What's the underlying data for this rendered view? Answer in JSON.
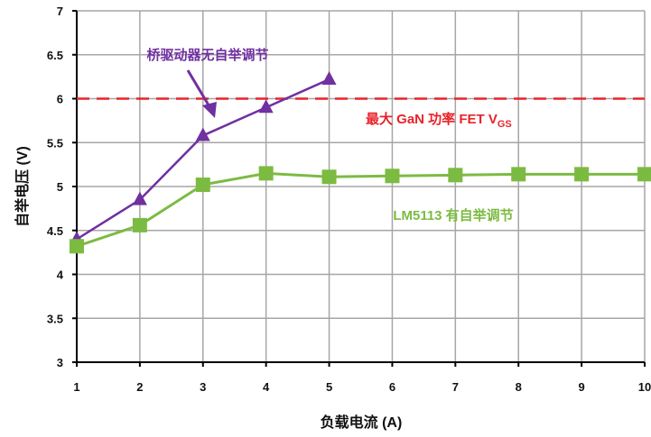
{
  "chart_data": {
    "type": "line",
    "xlabel": "负载电流 (A)",
    "ylabel": "自举电压 (V)",
    "xlim": [
      1,
      10
    ],
    "ylim": [
      3,
      7
    ],
    "xticks": [
      "1",
      "2",
      "3",
      "4",
      "5",
      "6",
      "7",
      "8",
      "9",
      "10"
    ],
    "yticks": [
      "3",
      "3.5",
      "4",
      "4.5",
      "5",
      "5.5",
      "6",
      "6.5",
      "7"
    ],
    "grid": true,
    "series": [
      {
        "label_ref": "annotations.purple",
        "color": "#7030a0",
        "marker": "triangle",
        "x": [
          1,
          2,
          3,
          4,
          5
        ],
        "y": [
          4.4,
          4.85,
          5.58,
          5.9,
          6.22
        ]
      },
      {
        "label_ref": "annotations.green",
        "color": "#7cbb42",
        "marker": "square",
        "x": [
          1,
          2,
          3,
          4,
          5,
          6,
          7,
          8,
          9,
          10
        ],
        "y": [
          4.32,
          4.56,
          5.02,
          5.15,
          5.11,
          5.12,
          5.13,
          5.14,
          5.14,
          5.14
        ]
      }
    ],
    "reference_line": {
      "y": 6,
      "color": "#e8232a",
      "style": "dashed"
    },
    "annotations": {
      "purple": "桥驱动器无自举调节",
      "green": "LM5113 有自举调节",
      "red_main": "最大 GaN 功率 FET V",
      "red_sub": "GS"
    }
  }
}
